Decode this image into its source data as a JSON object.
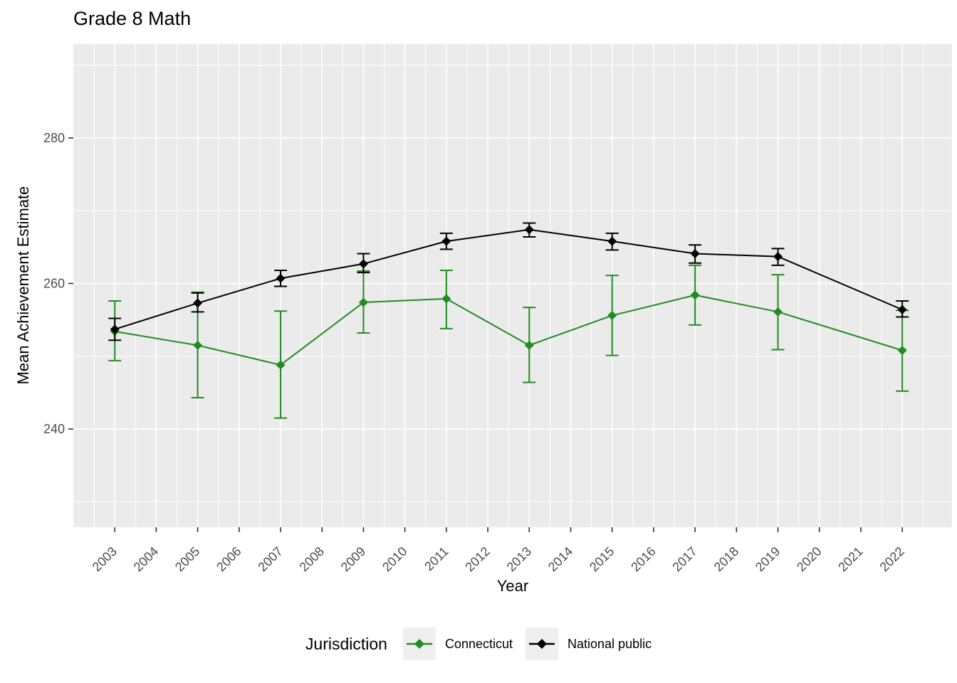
{
  "title": "Grade 8 Math",
  "axes": {
    "x_label": "Year",
    "y_label": "Mean Achievement Estimate"
  },
  "legend": {
    "title": "Jurisdiction",
    "items": [
      {
        "label": "Connecticut",
        "color": "#228B22"
      },
      {
        "label": "National public",
        "color": "#000000"
      }
    ]
  },
  "colors": {
    "panel_bg": "#EBEBEB",
    "grid": "#FFFFFF",
    "tick_text": "#4D4D4D",
    "tick_mark": "#333333",
    "connecticut_green": "#228B22",
    "national_black": "#000000"
  },
  "chart_data": {
    "type": "line",
    "title": "Grade 8 Math",
    "xlabel": "Year",
    "ylabel": "Mean Achievement Estimate",
    "grid": true,
    "legend_position": "bottom",
    "marker": "diamond",
    "error_bars": true,
    "x_domain": [
      2002,
      2023.2
    ],
    "y_domain": [
      226.5,
      292.9
    ],
    "x_ticks": [
      2003,
      2004,
      2005,
      2006,
      2007,
      2008,
      2009,
      2010,
      2011,
      2012,
      2013,
      2014,
      2015,
      2016,
      2017,
      2018,
      2019,
      2020,
      2021,
      2022
    ],
    "x_tick_labels": [
      "2003",
      "2004",
      "2005",
      "2006",
      "2007",
      "2008",
      "2009",
      "2010",
      "2011",
      "2012",
      "2013",
      "2014",
      "2015",
      "2016",
      "2017",
      "2018",
      "2019",
      "2020",
      "2021",
      "2022"
    ],
    "x_tick_rotation": 45,
    "y_ticks": [
      240,
      260,
      280
    ],
    "y_tick_labels": [
      "240",
      "260",
      "280"
    ],
    "y_minor_ticks": [
      230,
      250,
      270,
      290
    ],
    "series": [
      {
        "name": "Connecticut",
        "color": "#228B22",
        "x": [
          2003,
          2005,
          2007,
          2009,
          2011,
          2013,
          2015,
          2017,
          2019,
          2022
        ],
        "y": [
          253.4,
          251.5,
          248.8,
          257.4,
          257.9,
          251.5,
          255.6,
          258.4,
          256.1,
          250.8
        ],
        "ci_low": [
          249.4,
          244.3,
          241.5,
          253.2,
          253.8,
          246.4,
          250.1,
          254.3,
          250.9,
          245.2
        ],
        "ci_high": [
          257.6,
          258.8,
          256.2,
          261.7,
          261.8,
          256.7,
          261.1,
          262.5,
          261.2,
          256.3
        ]
      },
      {
        "name": "National public",
        "color": "#000000",
        "x": [
          2003,
          2005,
          2007,
          2009,
          2011,
          2013,
          2015,
          2017,
          2019,
          2022
        ],
        "y": [
          253.7,
          257.3,
          260.7,
          262.7,
          265.8,
          267.4,
          265.8,
          264.1,
          263.7,
          256.4
        ],
        "ci_low": [
          252.2,
          256.1,
          259.6,
          261.5,
          264.7,
          266.4,
          264.6,
          262.8,
          262.5,
          255.4
        ],
        "ci_high": [
          255.2,
          258.7,
          261.8,
          264.1,
          266.9,
          268.3,
          266.9,
          265.3,
          264.8,
          257.6
        ]
      }
    ]
  }
}
